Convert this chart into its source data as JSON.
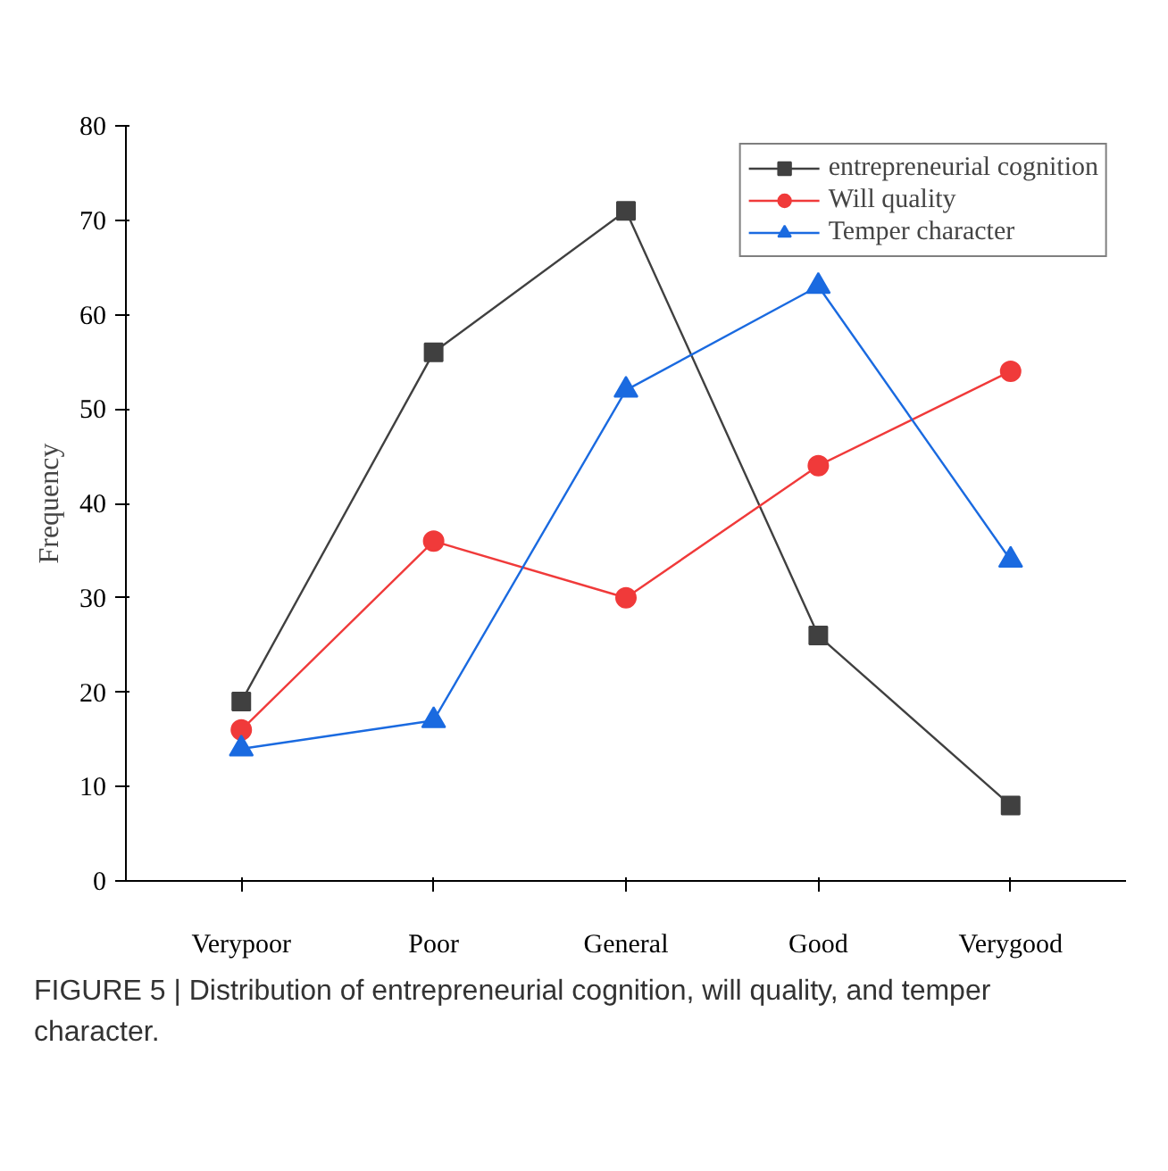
{
  "chart_data": {
    "type": "line",
    "ylabel": "Frequency",
    "categories": [
      "Verypoor",
      "Poor",
      "General",
      "Good",
      "Verygood"
    ],
    "series": [
      {
        "name": "entrepreneurial cognition",
        "color": "#404040",
        "marker": "square",
        "values": [
          19,
          56,
          71,
          26,
          8
        ]
      },
      {
        "name": "Will quality",
        "color": "#f03a3a",
        "marker": "circle",
        "values": [
          16,
          36,
          30,
          44,
          54
        ]
      },
      {
        "name": "Temper character",
        "color": "#1a6ae0",
        "marker": "triangle",
        "values": [
          14,
          17,
          52,
          63,
          34
        ]
      }
    ],
    "ylim": [
      0,
      80
    ],
    "yticks": [
      0,
      10,
      20,
      30,
      40,
      50,
      60,
      70,
      80
    ],
    "grid": false,
    "legend": "top right",
    "annotations": [
      "FIGURE 5 | Distribution of entrepreneurial cognition, will quality, and temper character."
    ]
  }
}
